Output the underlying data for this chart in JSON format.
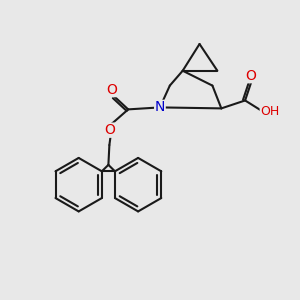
{
  "bg_color": "#e8e8e8",
  "bond_color": "#1a1a1a",
  "bond_width": 1.5,
  "atom_colors": {
    "O": "#dd0000",
    "N": "#0000cc",
    "C": "#1a1a1a"
  },
  "font_size_atom": 9,
  "fig_size": [
    3.0,
    3.0
  ],
  "dpi": 100
}
